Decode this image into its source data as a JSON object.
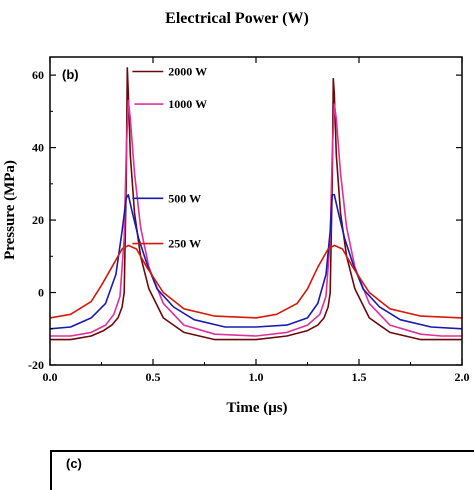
{
  "header": {
    "title": "Electrical Power  (W)"
  },
  "panel_c": {
    "label": "(c)"
  },
  "chart_data": {
    "type": "line",
    "panel_label": "(b)",
    "xlabel": "Time  (μs)",
    "ylabel": "Pressure  (MPa)",
    "xlim": [
      0.0,
      2.0
    ],
    "ylim": [
      -20,
      65
    ],
    "xticks": [
      "0.0",
      "0.5",
      "1.0",
      "1.5",
      "2.0"
    ],
    "xtick_values": [
      0.0,
      0.5,
      1.0,
      1.5,
      2.0
    ],
    "yticks": [
      "-20",
      "0",
      "20",
      "40",
      "60"
    ],
    "ytick_values": [
      -20,
      0,
      20,
      40,
      60
    ],
    "grid": false,
    "legend_placement": "inline-right-of-peaks",
    "series": [
      {
        "name": "2000 W",
        "color": "#6b0a0a",
        "x": [
          0.0,
          0.1,
          0.2,
          0.26,
          0.3,
          0.33,
          0.35,
          0.36,
          0.37,
          0.375,
          0.38,
          0.39,
          0.41,
          0.44,
          0.48,
          0.55,
          0.65,
          0.8,
          1.0,
          1.15,
          1.25,
          1.3,
          1.33,
          1.35,
          1.36,
          1.37,
          1.375,
          1.38,
          1.39,
          1.41,
          1.44,
          1.48,
          1.55,
          1.65,
          1.8,
          1.9,
          2.0
        ],
        "y": [
          -13,
          -13,
          -12,
          -10.5,
          -9,
          -7,
          -4,
          0,
          30,
          62,
          55,
          38,
          22,
          10,
          1,
          -7,
          -11,
          -13,
          -13,
          -12,
          -10.5,
          -9,
          -7,
          -4,
          0,
          30,
          59,
          55,
          38,
          22,
          10,
          1,
          -7,
          -11,
          -13,
          -13,
          -13
        ]
      },
      {
        "name": "1000 W",
        "color": "#e0309a",
        "x": [
          0.0,
          0.1,
          0.2,
          0.27,
          0.31,
          0.34,
          0.36,
          0.37,
          0.38,
          0.39,
          0.41,
          0.44,
          0.48,
          0.55,
          0.65,
          0.8,
          1.0,
          1.15,
          1.25,
          1.31,
          1.34,
          1.36,
          1.37,
          1.38,
          1.39,
          1.41,
          1.44,
          1.48,
          1.55,
          1.65,
          1.8,
          1.9,
          2.0
        ],
        "y": [
          -12,
          -12,
          -11,
          -9,
          -6,
          -1,
          15,
          38,
          53,
          48,
          33,
          18,
          7,
          -3,
          -9,
          -11.5,
          -12,
          -11,
          -9,
          -6,
          -1,
          15,
          38,
          52,
          48,
          33,
          18,
          7,
          -3,
          -9,
          -11.5,
          -12,
          -12
        ]
      },
      {
        "name": "500 W",
        "color": "#1a1ab0",
        "x": [
          0.0,
          0.1,
          0.2,
          0.27,
          0.32,
          0.35,
          0.37,
          0.38,
          0.4,
          0.43,
          0.47,
          0.52,
          0.6,
          0.7,
          0.85,
          1.0,
          1.15,
          1.25,
          1.3,
          1.34,
          1.36,
          1.37,
          1.38,
          1.4,
          1.43,
          1.47,
          1.52,
          1.6,
          1.7,
          1.85,
          2.0
        ],
        "y": [
          -10,
          -9.5,
          -7,
          -3,
          5,
          17,
          26,
          27,
          22,
          15,
          8,
          1,
          -4,
          -7.5,
          -9.5,
          -9.5,
          -9,
          -7,
          -3,
          5,
          17,
          27,
          27,
          22,
          15,
          8,
          1,
          -4,
          -7.5,
          -9.5,
          -10
        ]
      },
      {
        "name": "250 W",
        "color": "#d41a0a",
        "x": [
          0.0,
          0.1,
          0.2,
          0.25,
          0.3,
          0.35,
          0.38,
          0.42,
          0.47,
          0.55,
          0.65,
          0.8,
          1.0,
          1.1,
          1.2,
          1.25,
          1.3,
          1.35,
          1.38,
          1.42,
          1.47,
          1.55,
          1.65,
          1.8,
          2.0
        ],
        "y": [
          -7,
          -6,
          -2.5,
          2,
          7,
          12,
          13,
          12,
          7,
          0,
          -4.5,
          -6.5,
          -7,
          -6,
          -3,
          1,
          7,
          12,
          13,
          12,
          7,
          0,
          -4.5,
          -6.5,
          -7
        ]
      }
    ],
    "legend": [
      {
        "series": "2000 W",
        "tx": 0.4,
        "ty": 61,
        "lx": 0.55,
        "ly": 61
      },
      {
        "series": "1000 W",
        "tx": 0.41,
        "ty": 52,
        "lx": 0.55,
        "ly": 52
      },
      {
        "series": "500 W",
        "tx": 0.4,
        "ty": 26,
        "lx": 0.55,
        "ly": 26
      },
      {
        "series": "250 W",
        "tx": 0.4,
        "ty": 13.5,
        "lx": 0.55,
        "ly": 13.5
      }
    ]
  }
}
